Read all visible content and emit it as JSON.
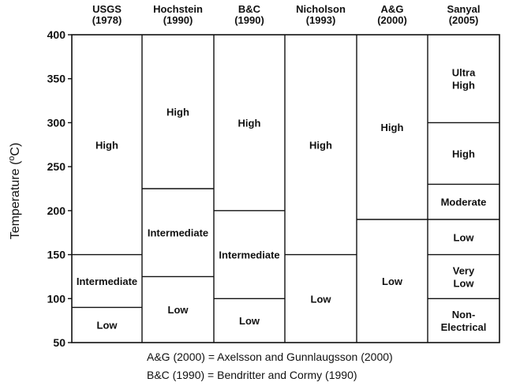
{
  "chart_data": {
    "type": "table",
    "ylabel": {
      "main": "Temperature (",
      "sup": "o",
      "tail": "C)"
    },
    "ylim": [
      50,
      400
    ],
    "yticks": [
      50,
      100,
      150,
      200,
      250,
      300,
      350,
      400
    ],
    "columns": [
      {
        "name": [
          "USGS",
          "(1978)"
        ],
        "classes": [
          {
            "lines": [
              "Low"
            ],
            "from": 50,
            "to": 90
          },
          {
            "lines": [
              "Intermediate"
            ],
            "from": 90,
            "to": 150
          },
          {
            "lines": [
              "High"
            ],
            "from": 150,
            "to": 400
          }
        ]
      },
      {
        "name": [
          "Hochstein",
          "(1990)"
        ],
        "classes": [
          {
            "lines": [
              "Low"
            ],
            "from": 50,
            "to": 125
          },
          {
            "lines": [
              "Intermediate"
            ],
            "from": 125,
            "to": 225
          },
          {
            "lines": [
              "High"
            ],
            "from": 225,
            "to": 400
          }
        ]
      },
      {
        "name": [
          "B&C",
          "(1990)"
        ],
        "classes": [
          {
            "lines": [
              "Low"
            ],
            "from": 50,
            "to": 100
          },
          {
            "lines": [
              "Intermediate"
            ],
            "from": 100,
            "to": 200
          },
          {
            "lines": [
              "High"
            ],
            "from": 200,
            "to": 400
          }
        ]
      },
      {
        "name": [
          "Nicholson",
          "(1993)"
        ],
        "classes": [
          {
            "lines": [
              "Low"
            ],
            "from": 50,
            "to": 150
          },
          {
            "lines": [
              "High"
            ],
            "from": 150,
            "to": 400
          }
        ]
      },
      {
        "name": [
          "A&G",
          "(2000)"
        ],
        "classes": [
          {
            "lines": [
              "Low"
            ],
            "from": 50,
            "to": 190
          },
          {
            "lines": [
              "High"
            ],
            "from": 190,
            "to": 400
          }
        ]
      },
      {
        "name": [
          "Sanyal",
          "(2005)"
        ],
        "classes": [
          {
            "lines": [
              "Non-",
              "Electrical"
            ],
            "from": 50,
            "to": 100
          },
          {
            "lines": [
              "Very",
              "Low"
            ],
            "from": 100,
            "to": 150
          },
          {
            "lines": [
              "Low"
            ],
            "from": 150,
            "to": 190
          },
          {
            "lines": [
              "Moderate"
            ],
            "from": 190,
            "to": 230
          },
          {
            "lines": [
              "High"
            ],
            "from": 230,
            "to": 300
          },
          {
            "lines": [
              "Ultra",
              "High"
            ],
            "from": 300,
            "to": 400
          }
        ]
      }
    ],
    "notes": [
      "A&G (2000) = Axelsson and Gunnlaugsson (2000)",
      "B&C (1990) = Bendritter and Cormy (1990)"
    ]
  }
}
